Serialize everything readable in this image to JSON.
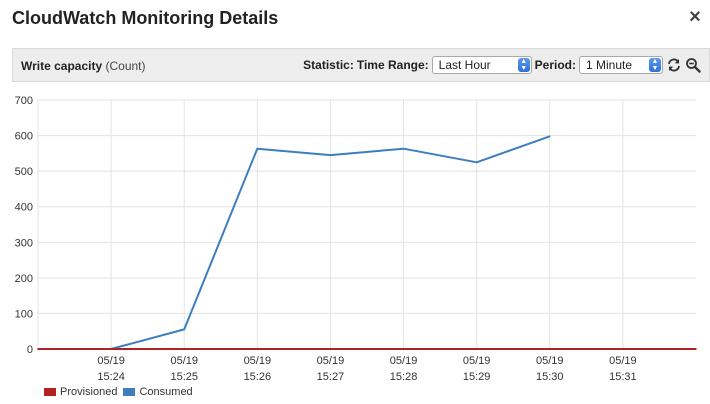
{
  "window": {
    "title": "CloudWatch Monitoring Details",
    "close_glyph": "×"
  },
  "toolbar": {
    "metric_name": "Write capacity",
    "metric_unit": "(Count)",
    "statistic_label": "Statistic:",
    "time_range_label": "Time Range:",
    "time_range_value": "Last Hour",
    "period_label": "Period:",
    "period_value": "1 Minute",
    "refresh_icon": "refresh-icon",
    "zoom_icon": "zoom-out-icon"
  },
  "chart_data": {
    "type": "line",
    "ylim": [
      0,
      700
    ],
    "yticks": [
      0,
      100,
      200,
      300,
      400,
      500,
      600,
      700
    ],
    "x_ticks": [
      {
        "date": "05/19",
        "time": "15:24"
      },
      {
        "date": "05/19",
        "time": "15:25"
      },
      {
        "date": "05/19",
        "time": "15:26"
      },
      {
        "date": "05/19",
        "time": "15:27"
      },
      {
        "date": "05/19",
        "time": "15:28"
      },
      {
        "date": "05/19",
        "time": "15:29"
      },
      {
        "date": "05/19",
        "time": "15:30"
      },
      {
        "date": "05/19",
        "time": "15:31"
      }
    ],
    "grid": true,
    "legend_position": "bottom-left",
    "series": [
      {
        "name": "Provisioned",
        "color": "#b22222",
        "x": [
          "15:23",
          "15:24",
          "15:25",
          "15:26",
          "15:27",
          "15:28",
          "15:29",
          "15:30",
          "15:31",
          "15:32"
        ],
        "values": [
          0,
          0,
          0,
          0,
          0,
          0,
          0,
          0,
          0,
          0
        ]
      },
      {
        "name": "Consumed",
        "color": "#3d7ebf",
        "x": [
          "15:23",
          "15:24",
          "15:25",
          "15:26",
          "15:27",
          "15:28",
          "15:29",
          "15:30"
        ],
        "values": [
          0,
          0,
          55,
          563,
          545,
          563,
          525,
          598
        ]
      }
    ]
  }
}
